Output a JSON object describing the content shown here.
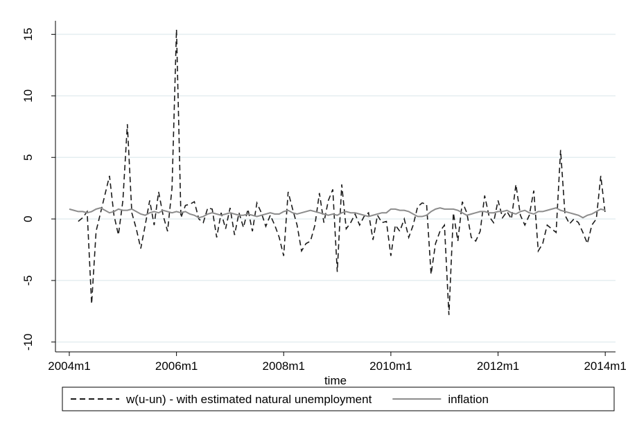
{
  "chart_data": {
    "type": "line",
    "xlabel": "time",
    "x": [
      528,
      529,
      530,
      531,
      532,
      533,
      534,
      535,
      536,
      537,
      538,
      539,
      540,
      541,
      542,
      543,
      544,
      545,
      546,
      547,
      548,
      549,
      550,
      551,
      552,
      553,
      554,
      555,
      556,
      557,
      558,
      559,
      560,
      561,
      562,
      563,
      564,
      565,
      566,
      567,
      568,
      569,
      570,
      571,
      572,
      573,
      574,
      575,
      576,
      577,
      578,
      579,
      580,
      581,
      582,
      583,
      584,
      585,
      586,
      587,
      588,
      589,
      590,
      591,
      592,
      593,
      594,
      595,
      596,
      597,
      598,
      599,
      600,
      601,
      602,
      603,
      604,
      605,
      606,
      607,
      608,
      609,
      610,
      611,
      612,
      613,
      614,
      615,
      616,
      617,
      618,
      619,
      620,
      621,
      622,
      623,
      624,
      625,
      626,
      627,
      628,
      629,
      630,
      631,
      632,
      633,
      634,
      635,
      636,
      637,
      638,
      639,
      640,
      641,
      642,
      643,
      644,
      645,
      646,
      647,
      648
    ],
    "series": [
      {
        "name": "w(u-un) - with estimated natural unemployment",
        "color": "#1a1a1a",
        "dash": true,
        "values": [
          null,
          null,
          -0.2,
          0.1,
          0.6,
          -6.9,
          -1.0,
          0.5,
          2.0,
          3.5,
          0.3,
          -1.3,
          1.5,
          7.7,
          0.5,
          -0.8,
          -2.4,
          -0.5,
          1.5,
          -0.5,
          2.2,
          0.3,
          -1.0,
          2.5,
          15.4,
          0.1,
          1.1,
          1.2,
          1.4,
          0.0,
          -0.3,
          0.9,
          0.8,
          -1.5,
          0.5,
          -0.8,
          0.9,
          -1.3,
          0.5,
          -0.7,
          0.8,
          -1.0,
          1.3,
          0.5,
          -0.6,
          0.3,
          -0.5,
          -1.5,
          -3.0,
          2.2,
          0.8,
          -0.5,
          -2.6,
          -2.0,
          -1.8,
          -0.5,
          2.1,
          -0.3,
          1.5,
          2.4,
          -4.3,
          2.8,
          -0.8,
          -0.3,
          0.4,
          -0.5,
          0.2,
          0.5,
          -1.7,
          0.3,
          -0.3,
          -0.2,
          -3.0,
          -0.5,
          -1.0,
          0.0,
          -1.5,
          -0.5,
          1.0,
          1.3,
          1.2,
          -4.5,
          -2.0,
          -1.0,
          -0.5,
          -7.8,
          0.5,
          -1.8,
          1.4,
          0.5,
          -1.5,
          -1.8,
          -1.0,
          1.9,
          0.2,
          -0.3,
          1.5,
          0.1,
          0.6,
          0.0,
          2.8,
          0.3,
          -0.5,
          0.3,
          2.3,
          -2.6,
          -2.0,
          -0.5,
          -0.8,
          -1.1,
          5.6,
          0.3,
          -0.4,
          0.0,
          -0.3,
          -1.1,
          -2.0,
          -0.5,
          0.0,
          3.5,
          0.4
        ]
      },
      {
        "name": "inflation",
        "color": "#8c8c8c",
        "dash": false,
        "values": [
          0.8,
          0.7,
          0.6,
          0.6,
          0.5,
          0.6,
          0.8,
          0.9,
          0.7,
          0.5,
          0.6,
          0.8,
          0.7,
          0.7,
          0.8,
          0.6,
          0.4,
          0.3,
          0.5,
          0.6,
          0.5,
          0.7,
          0.6,
          0.5,
          0.6,
          0.5,
          0.6,
          0.4,
          0.3,
          0.1,
          0.2,
          0.4,
          0.5,
          0.4,
          0.3,
          0.4,
          0.5,
          0.4,
          0.3,
          0.3,
          0.4,
          0.3,
          0.2,
          0.3,
          0.4,
          0.5,
          0.4,
          0.4,
          0.6,
          0.7,
          0.5,
          0.4,
          0.5,
          0.6,
          0.7,
          0.6,
          0.5,
          0.4,
          0.3,
          0.4,
          0.3,
          0.5,
          0.6,
          0.5,
          0.5,
          0.4,
          0.3,
          0.2,
          0.3,
          0.4,
          0.5,
          0.5,
          0.8,
          0.8,
          0.7,
          0.7,
          0.6,
          0.4,
          0.2,
          0.2,
          0.3,
          0.6,
          0.8,
          0.9,
          0.8,
          0.8,
          0.8,
          0.7,
          0.5,
          0.3,
          0.4,
          0.5,
          0.6,
          0.6,
          0.5,
          0.5,
          0.6,
          0.6,
          0.7,
          0.5,
          0.4,
          0.6,
          0.7,
          0.5,
          0.4,
          0.6,
          0.6,
          0.7,
          0.8,
          0.9,
          0.7,
          0.6,
          0.5,
          0.4,
          0.3,
          0.1,
          0.3,
          0.4,
          0.6,
          0.8,
          0.7
        ]
      }
    ],
    "xlim": [
      524.9,
      650.3
    ],
    "ylim": [
      -10.8,
      16.1
    ],
    "xticks": [
      {
        "value": 528,
        "label": "2004m1"
      },
      {
        "value": 552,
        "label": "2006m1"
      },
      {
        "value": 576,
        "label": "2008m1"
      },
      {
        "value": 600,
        "label": "2010m1"
      },
      {
        "value": 624,
        "label": "2012m1"
      },
      {
        "value": 648,
        "label": "2014m1"
      }
    ],
    "yticks": [
      {
        "value": -10,
        "label": "-10"
      },
      {
        "value": -5,
        "label": "-5"
      },
      0,
      5,
      10,
      15
    ],
    "grid": true,
    "legend": "bottom"
  }
}
